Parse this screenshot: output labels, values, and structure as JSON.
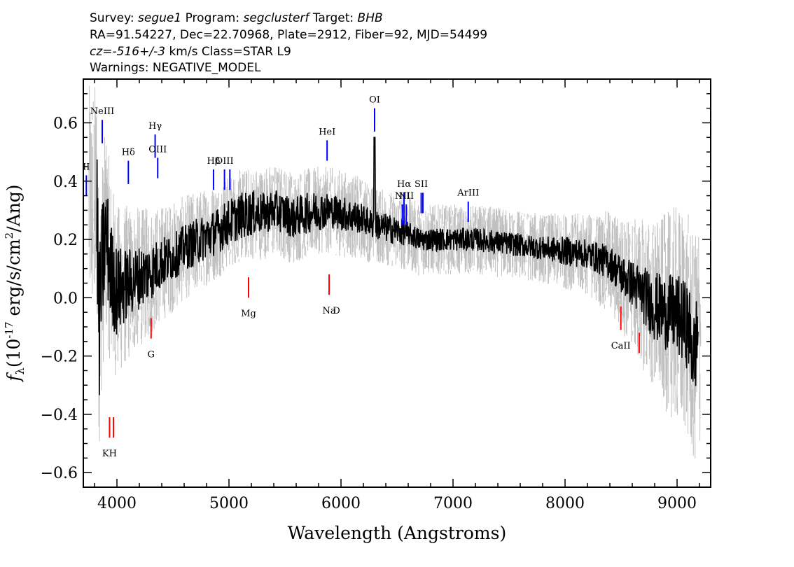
{
  "header": {
    "line1": {
      "survey_label": "Survey:",
      "survey_value": "segue1",
      "program_label": "Program:",
      "program_value": "segclusterf",
      "target_label": "Target:",
      "target_value": "BHB"
    },
    "line2": "RA=91.54227, Dec=22.70968, Plate=2912, Fiber=92, MJD=54499",
    "line3": {
      "cz_label": "cz=",
      "cz_value": "-516+/-3",
      "cz_units": "km/s",
      "class_text": "Class=STAR L9"
    },
    "line4": "Warnings: NEGATIVE_MODEL"
  },
  "chart_data": {
    "type": "line",
    "xlabel": "Wavelength (Angstroms)",
    "ylabel": "f_λ (10^-17 erg/s/cm²/Ang)",
    "ylabel_parts": {
      "symbol": "f",
      "sub": "λ",
      "pre": "(10",
      "exp": "-17",
      "mid": " erg/s/cm",
      "exp2": "2",
      "post": "/Ang)"
    },
    "xlim": [
      3700,
      9300
    ],
    "ylim": [
      -0.65,
      0.75
    ],
    "x_ticks": [
      4000,
      5000,
      6000,
      7000,
      8000,
      9000
    ],
    "x_tick_labels": [
      "4000",
      "5000",
      "6000",
      "7000",
      "8000",
      "9000"
    ],
    "y_ticks": [
      -0.6,
      -0.4,
      -0.2,
      0.0,
      0.2,
      0.4,
      0.6
    ],
    "y_tick_labels": [
      "−0.6",
      "−0.4",
      "−0.2",
      "0.0",
      "0.2",
      "0.4",
      "0.6"
    ],
    "grid": false,
    "series": [
      {
        "role": "flux",
        "color": "#000000",
        "x": [
          3820,
          3840,
          3860,
          3880,
          3900,
          3950,
          4000,
          4100,
          4200,
          4300,
          4400,
          4500,
          4600,
          4700,
          4800,
          4900,
          5000,
          5100,
          5200,
          5300,
          5400,
          5500,
          5580,
          5600,
          5700,
          5800,
          5900,
          6000,
          6100,
          6200,
          6290,
          6300,
          6310,
          6400,
          6500,
          6600,
          6700,
          6800,
          6900,
          7000,
          7200,
          7400,
          7600,
          7800,
          8000,
          8200,
          8400,
          8500,
          8600,
          8700,
          8800,
          8900,
          9000,
          9100,
          9150,
          9190
        ],
        "y": [
          0.33,
          -0.12,
          0.05,
          0.15,
          0.22,
          0.08,
          0.02,
          0.05,
          0.07,
          0.09,
          0.12,
          0.14,
          0.17,
          0.19,
          0.21,
          0.23,
          0.26,
          0.28,
          0.29,
          0.29,
          0.3,
          0.29,
          0.27,
          0.28,
          0.29,
          0.3,
          0.3,
          0.29,
          0.28,
          0.27,
          0.25,
          0.55,
          0.25,
          0.24,
          0.23,
          0.22,
          0.2,
          0.2,
          0.2,
          0.2,
          0.2,
          0.19,
          0.18,
          0.17,
          0.16,
          0.15,
          0.12,
          0.08,
          0.05,
          0.01,
          -0.03,
          -0.05,
          -0.06,
          -0.1,
          -0.2,
          -0.11
        ],
        "noise_amplitude": [
          0.3,
          0.28,
          0.25,
          0.22,
          0.2,
          0.18,
          0.16,
          0.12,
          0.11,
          0.1,
          0.09,
          0.08,
          0.08,
          0.08,
          0.08,
          0.08,
          0.08,
          0.08,
          0.08,
          0.07,
          0.07,
          0.07,
          0.07,
          0.07,
          0.07,
          0.07,
          0.06,
          0.06,
          0.06,
          0.05,
          0.05,
          0.05,
          0.05,
          0.05,
          0.05,
          0.04,
          0.04,
          0.04,
          0.04,
          0.04,
          0.04,
          0.04,
          0.04,
          0.04,
          0.05,
          0.05,
          0.06,
          0.07,
          0.08,
          0.1,
          0.12,
          0.13,
          0.14,
          0.15,
          0.16,
          0.16
        ]
      },
      {
        "role": "error",
        "color": "#c0c0c0",
        "x": [
          3760,
          3820,
          3900,
          4000,
          4200,
          4400,
          4600,
          4800,
          5000,
          5200,
          5400,
          5600,
          5800,
          6000,
          6200,
          6400,
          6600,
          6800,
          7000,
          7200,
          7400,
          7600,
          7800,
          8000,
          8200,
          8400,
          8600,
          8800,
          9000,
          9200
        ],
        "half_width": [
          0.4,
          0.42,
          0.36,
          0.3,
          0.24,
          0.2,
          0.18,
          0.17,
          0.16,
          0.16,
          0.16,
          0.16,
          0.15,
          0.15,
          0.14,
          0.13,
          0.13,
          0.12,
          0.12,
          0.12,
          0.12,
          0.12,
          0.12,
          0.13,
          0.14,
          0.18,
          0.22,
          0.3,
          0.38,
          0.4
        ]
      }
    ],
    "emission_lines": [
      {
        "label": "OII",
        "display": "II",
        "wave": 3727,
        "y_top": 0.42,
        "y_bottom": 0.35,
        "label_y": 0.43
      },
      {
        "label": "NeIII",
        "wave": 3869,
        "y_top": 0.61,
        "y_bottom": 0.53,
        "label_y": 0.62
      },
      {
        "label": "Hδ",
        "wave": 4102,
        "y_top": 0.47,
        "y_bottom": 0.39,
        "label_y": 0.48
      },
      {
        "label": "Hγ",
        "wave": 4341,
        "y_top": 0.56,
        "y_bottom": 0.48,
        "label_y": 0.57
      },
      {
        "label": "OIII",
        "wave": 4364,
        "y_top": 0.48,
        "y_bottom": 0.41,
        "label_y": 0.49
      },
      {
        "label": "Hβ",
        "wave": 4862,
        "y_top": 0.44,
        "y_bottom": 0.37,
        "label_y": 0.45
      },
      {
        "label": "OIII",
        "wave": 4960,
        "y_top": 0.44,
        "y_bottom": 0.37,
        "label_y": 0.45
      },
      {
        "label": "",
        "wave": 5008,
        "y_top": 0.44,
        "y_bottom": 0.37,
        "label_y": 0.45
      },
      {
        "label": "HeI",
        "wave": 5876,
        "y_top": 0.54,
        "y_bottom": 0.47,
        "label_y": 0.55
      },
      {
        "label": "OI",
        "wave": 6300,
        "y_top": 0.65,
        "y_bottom": 0.57,
        "label_y": 0.66
      },
      {
        "label": "NII",
        "wave": 6548,
        "y_top": 0.32,
        "y_bottom": 0.25,
        "label_y": 0.33
      },
      {
        "label": "Hα",
        "wave": 6563,
        "y_top": 0.36,
        "y_bottom": 0.25,
        "label_y": 0.37
      },
      {
        "label": "NII",
        "wave": 6583,
        "y_top": 0.32,
        "y_bottom": 0.25,
        "label_y": 0.33
      },
      {
        "label": "SII",
        "wave": 6716,
        "y_top": 0.36,
        "y_bottom": 0.29,
        "label_y": 0.37
      },
      {
        "label": "",
        "wave": 6731,
        "y_top": 0.36,
        "y_bottom": 0.29,
        "label_y": 0.37
      },
      {
        "label": "ArIII",
        "wave": 7136,
        "y_top": 0.33,
        "y_bottom": 0.26,
        "label_y": 0.34
      }
    ],
    "absorption_lines": [
      {
        "label": "K",
        "display": "KH",
        "wave": 3934,
        "y_top": -0.41,
        "y_bottom": -0.48,
        "label_y": -0.52
      },
      {
        "label": "H",
        "display": "",
        "wave": 3969,
        "y_top": -0.41,
        "y_bottom": -0.48,
        "label_y": -0.52
      },
      {
        "label": "G",
        "wave": 4305,
        "y_top": -0.07,
        "y_bottom": -0.14,
        "label_y": -0.18
      },
      {
        "label": "Mg",
        "wave": 5175,
        "y_top": 0.07,
        "y_bottom": 0.0,
        "label_y": -0.04
      },
      {
        "label": "Na",
        "wave": 5894,
        "y_top": 0.08,
        "y_bottom": 0.01,
        "label_y": -0.03
      },
      {
        "label": "D",
        "display": "D",
        "wave": 5960,
        "y_top": null,
        "y_bottom": null,
        "label_y": -0.03
      },
      {
        "label": "CaII",
        "wave": 8498,
        "y_top": -0.03,
        "y_bottom": -0.11,
        "label_y": -0.15
      },
      {
        "label": "",
        "wave": 8662,
        "y_top": -0.12,
        "y_bottom": -0.19,
        "label_y": -0.19
      }
    ],
    "emission_color": "#0000ff",
    "absorption_color": "#ff0000"
  }
}
